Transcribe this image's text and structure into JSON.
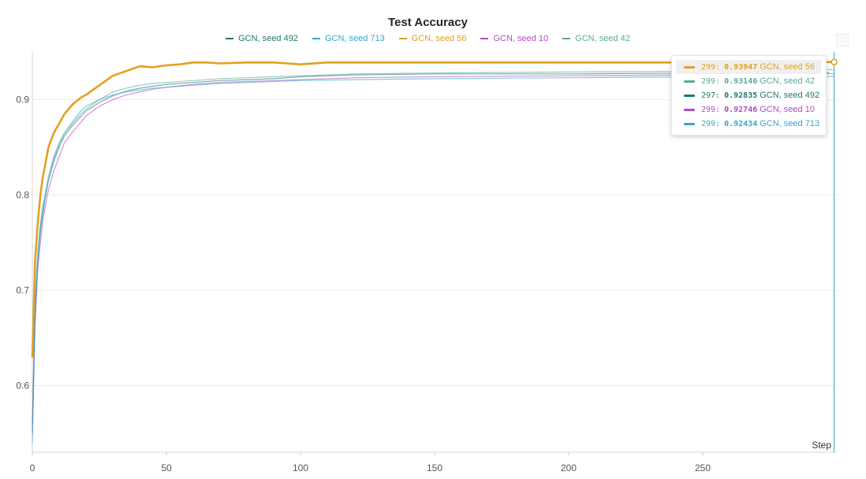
{
  "chart_data": {
    "type": "line",
    "title": "Test Accuracy",
    "xlabel": "Step",
    "ylabel": "",
    "xlim": [
      0,
      300
    ],
    "ylim": [
      0.53,
      0.95
    ],
    "x_ticks": [
      0,
      50,
      100,
      150,
      200,
      250
    ],
    "y_ticks": [
      0.6,
      0.7,
      0.8,
      0.9
    ],
    "grid": "horizontal",
    "legend_position": "top-center",
    "legend": [
      {
        "name": "GCN, seed 492",
        "color": "#1f7a6e"
      },
      {
        "name": "GCN, seed 713",
        "color": "#35a6cf"
      },
      {
        "name": "GCN, seed 56",
        "color": "#e3a021"
      },
      {
        "name": "GCN, seed 10",
        "color": "#b44ac4"
      },
      {
        "name": "GCN, seed 42",
        "color": "#5aaa9a"
      }
    ],
    "series": [
      {
        "name": "GCN, seed 56",
        "color": "#e3a021",
        "highlighted": true,
        "x": [
          0,
          1,
          2,
          3,
          4,
          5,
          6,
          8,
          10,
          12,
          15,
          18,
          20,
          25,
          30,
          35,
          40,
          45,
          50,
          55,
          60,
          65,
          70,
          80,
          90,
          95,
          100,
          110,
          120,
          150,
          200,
          250,
          299
        ],
        "y": [
          0.63,
          0.73,
          0.77,
          0.8,
          0.82,
          0.835,
          0.85,
          0.865,
          0.875,
          0.885,
          0.895,
          0.902,
          0.905,
          0.915,
          0.925,
          0.93,
          0.935,
          0.934,
          0.936,
          0.937,
          0.939,
          0.939,
          0.938,
          0.939,
          0.939,
          0.938,
          0.937,
          0.939,
          0.939,
          0.939,
          0.939,
          0.939,
          0.93947
        ]
      },
      {
        "name": "GCN, seed 42",
        "color": "#5aaa9a",
        "x": [
          0,
          1,
          2,
          3,
          4,
          5,
          6,
          8,
          10,
          12,
          15,
          18,
          20,
          25,
          30,
          35,
          40,
          45,
          50,
          60,
          70,
          80,
          90,
          100,
          120,
          150,
          200,
          250,
          299
        ],
        "y": [
          0.55,
          0.69,
          0.74,
          0.77,
          0.79,
          0.805,
          0.82,
          0.84,
          0.855,
          0.865,
          0.875,
          0.885,
          0.89,
          0.9,
          0.908,
          0.912,
          0.915,
          0.917,
          0.918,
          0.92,
          0.922,
          0.923,
          0.924,
          0.925,
          0.927,
          0.928,
          0.929,
          0.93,
          0.93146
        ]
      },
      {
        "name": "GCN, seed 492",
        "color": "#1f7a6e",
        "x": [
          0,
          1,
          2,
          3,
          4,
          5,
          6,
          8,
          10,
          12,
          15,
          18,
          20,
          25,
          30,
          35,
          40,
          45,
          50,
          60,
          70,
          80,
          90,
          100,
          120,
          150,
          200,
          250,
          297
        ],
        "y": [
          0.56,
          0.68,
          0.73,
          0.765,
          0.785,
          0.8,
          0.815,
          0.835,
          0.85,
          0.862,
          0.873,
          0.882,
          0.888,
          0.897,
          0.904,
          0.909,
          0.912,
          0.914,
          0.916,
          0.918,
          0.92,
          0.921,
          0.922,
          0.924,
          0.926,
          0.927,
          0.927,
          0.928,
          0.92835
        ]
      },
      {
        "name": "GCN, seed 10",
        "color": "#b44ac4",
        "x": [
          0,
          1,
          2,
          3,
          4,
          5,
          6,
          8,
          10,
          12,
          15,
          18,
          20,
          25,
          30,
          35,
          40,
          45,
          50,
          60,
          70,
          80,
          90,
          100,
          120,
          150,
          200,
          250,
          299
        ],
        "y": [
          0.55,
          0.66,
          0.72,
          0.75,
          0.775,
          0.79,
          0.805,
          0.825,
          0.84,
          0.855,
          0.866,
          0.876,
          0.883,
          0.893,
          0.9,
          0.905,
          0.908,
          0.911,
          0.913,
          0.916,
          0.918,
          0.919,
          0.92,
          0.921,
          0.923,
          0.924,
          0.925,
          0.926,
          0.92746
        ]
      },
      {
        "name": "GCN, seed 713",
        "color": "#35a6cf",
        "x": [
          0,
          1,
          2,
          3,
          4,
          5,
          6,
          8,
          10,
          12,
          15,
          18,
          20,
          25,
          30,
          35,
          40,
          45,
          50,
          60,
          70,
          80,
          90,
          100,
          120,
          150,
          200,
          250,
          299
        ],
        "y": [
          0.54,
          0.67,
          0.73,
          0.76,
          0.78,
          0.8,
          0.815,
          0.838,
          0.853,
          0.865,
          0.877,
          0.888,
          0.893,
          0.9,
          0.905,
          0.908,
          0.91,
          0.912,
          0.913,
          0.915,
          0.917,
          0.918,
          0.919,
          0.92,
          0.921,
          0.922,
          0.923,
          0.924,
          0.92434
        ]
      }
    ]
  },
  "tooltip": {
    "rows": [
      {
        "step": "299:",
        "value": "0.93947",
        "name": "GCN, seed 56",
        "color": "#e3a021",
        "highlight": true
      },
      {
        "step": "299:",
        "value": "0.93146",
        "name": "GCN, seed 42",
        "color": "#5aaa9a",
        "highlight": false
      },
      {
        "step": "297:",
        "value": "0.92835",
        "name": "GCN, seed 492",
        "color": "#1f7a6e",
        "highlight": false
      },
      {
        "step": "299:",
        "value": "0.92746",
        "name": "GCN, seed 10",
        "color": "#b44ac4",
        "highlight": false
      },
      {
        "step": "299:",
        "value": "0.92434",
        "name": "GCN, seed 713",
        "color": "#35a6cf",
        "highlight": false
      }
    ]
  },
  "hover": {
    "step": 299,
    "color": "#35a6cf"
  }
}
